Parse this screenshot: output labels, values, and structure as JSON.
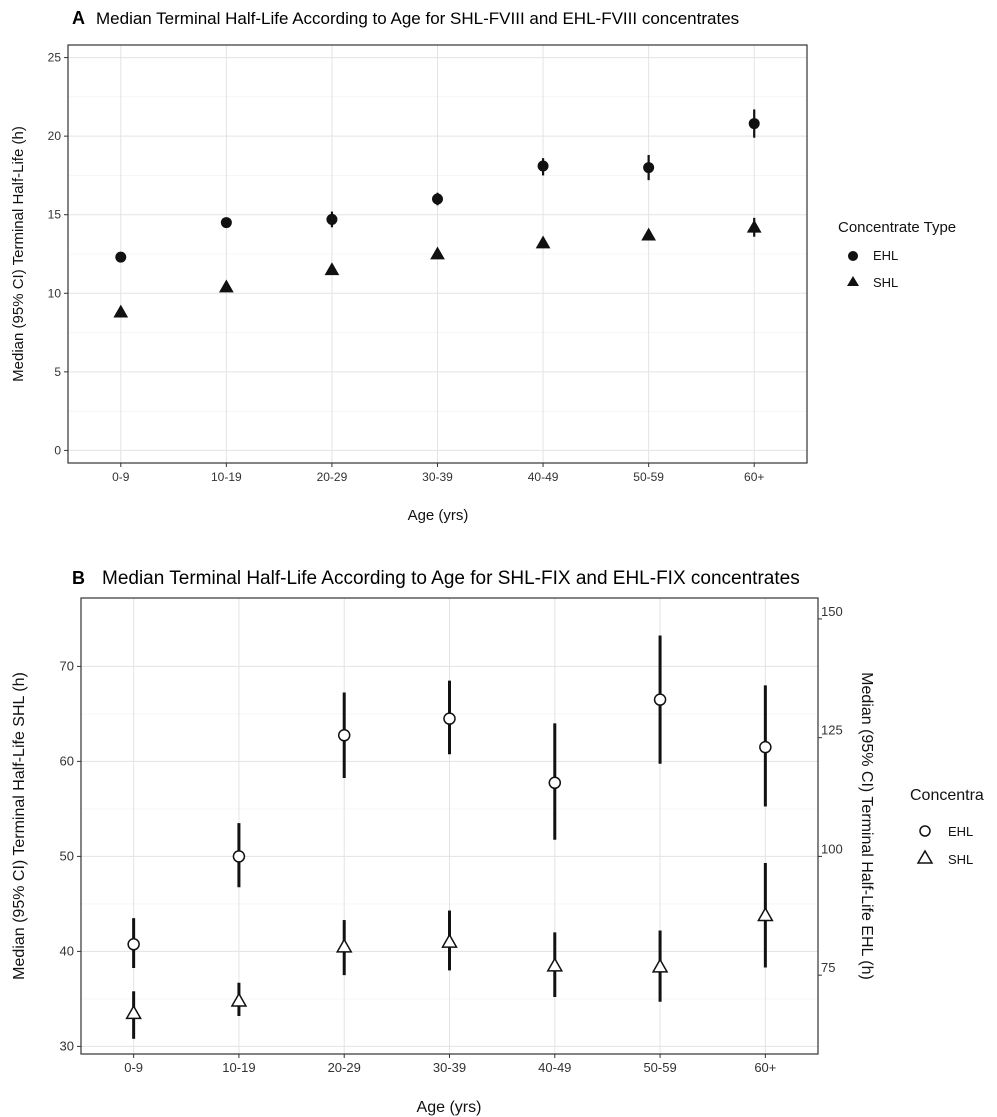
{
  "chart_data": [
    {
      "type": "scatter",
      "panel": "A",
      "title": "Median Terminal Half-Life According to Age for SHL-FVIII and EHL-FVIII concentrates",
      "xlabel": "Age (yrs)",
      "ylabel": "Median (95% CI) Terminal Half-Life (h)",
      "categories": [
        "0-9",
        "10-19",
        "20-29",
        "30-39",
        "40-49",
        "50-59",
        "60+"
      ],
      "ylim": [
        -0.8,
        25.8
      ],
      "yticks": [
        0,
        5,
        10,
        15,
        20,
        25
      ],
      "grid": true,
      "legend": {
        "title": "Concentrate Type",
        "position": "right"
      },
      "series": [
        {
          "name": "EHL",
          "marker": "filled-circle",
          "values": [
            12.3,
            14.5,
            14.7,
            16.0,
            18.1,
            18.0,
            20.8
          ],
          "ci_low": [
            12.1,
            14.3,
            14.2,
            15.6,
            17.5,
            17.2,
            19.9
          ],
          "ci_high": [
            12.6,
            14.7,
            15.2,
            16.4,
            18.6,
            18.8,
            21.7
          ]
        },
        {
          "name": "SHL",
          "marker": "filled-triangle",
          "values": [
            8.8,
            10.4,
            11.5,
            12.5,
            13.2,
            13.7,
            14.2
          ],
          "ci_low": [
            8.6,
            10.2,
            11.3,
            12.3,
            13.0,
            13.4,
            13.6
          ],
          "ci_high": [
            9.0,
            10.6,
            11.7,
            12.7,
            13.4,
            14.0,
            14.8
          ]
        }
      ]
    },
    {
      "type": "scatter",
      "panel": "B",
      "title": "Median Terminal Half-Life According to Age for SHL-FIX and EHL-FIX concentrates",
      "xlabel": "Age (yrs)",
      "ylabel": "Median (95% CI) Terminal Half-Life SHL (h)",
      "ylabel_right": "Median (95% CI) Terminal Half-Life EHL (h)",
      "categories": [
        "0-9",
        "10-19",
        "20-29",
        "30-39",
        "40-49",
        "50-59",
        "60+"
      ],
      "ylim": [
        29.2,
        77.2
      ],
      "yticks": [
        30,
        40,
        50,
        60,
        70
      ],
      "ylim_right": [
        58.4,
        154.4
      ],
      "yticks_right": [
        75,
        100,
        125,
        150
      ],
      "grid": true,
      "legend": {
        "title": "Concentra",
        "position": "right"
      },
      "series": [
        {
          "name": "EHL",
          "marker": "open-circle",
          "axis": "right",
          "values": [
            81.5,
            100.0,
            125.5,
            129.0,
            115.5,
            133.0,
            123.0
          ],
          "ci_low": [
            76.5,
            93.5,
            116.5,
            121.5,
            103.5,
            119.5,
            110.5
          ],
          "ci_high": [
            87.0,
            107.0,
            134.5,
            137.0,
            128.0,
            146.5,
            136.0
          ]
        },
        {
          "name": "SHL",
          "marker": "open-triangle",
          "axis": "left",
          "values": [
            33.5,
            34.8,
            40.5,
            41.0,
            38.5,
            38.4,
            43.8
          ],
          "ci_low": [
            30.8,
            33.2,
            37.5,
            38.0,
            35.2,
            34.7,
            38.3
          ],
          "ci_high": [
            35.8,
            36.7,
            43.3,
            44.3,
            42.0,
            42.2,
            49.3
          ]
        }
      ]
    }
  ],
  "panel_a": {
    "label": "A",
    "title": "Median Terminal Half-Life According to Age for SHL-FVIII and EHL-FVIII concentrates"
  },
  "panel_b": {
    "label": "B",
    "title": "Median Terminal Half-Life According to Age for SHL-FIX and EHL-FIX concentrates"
  }
}
